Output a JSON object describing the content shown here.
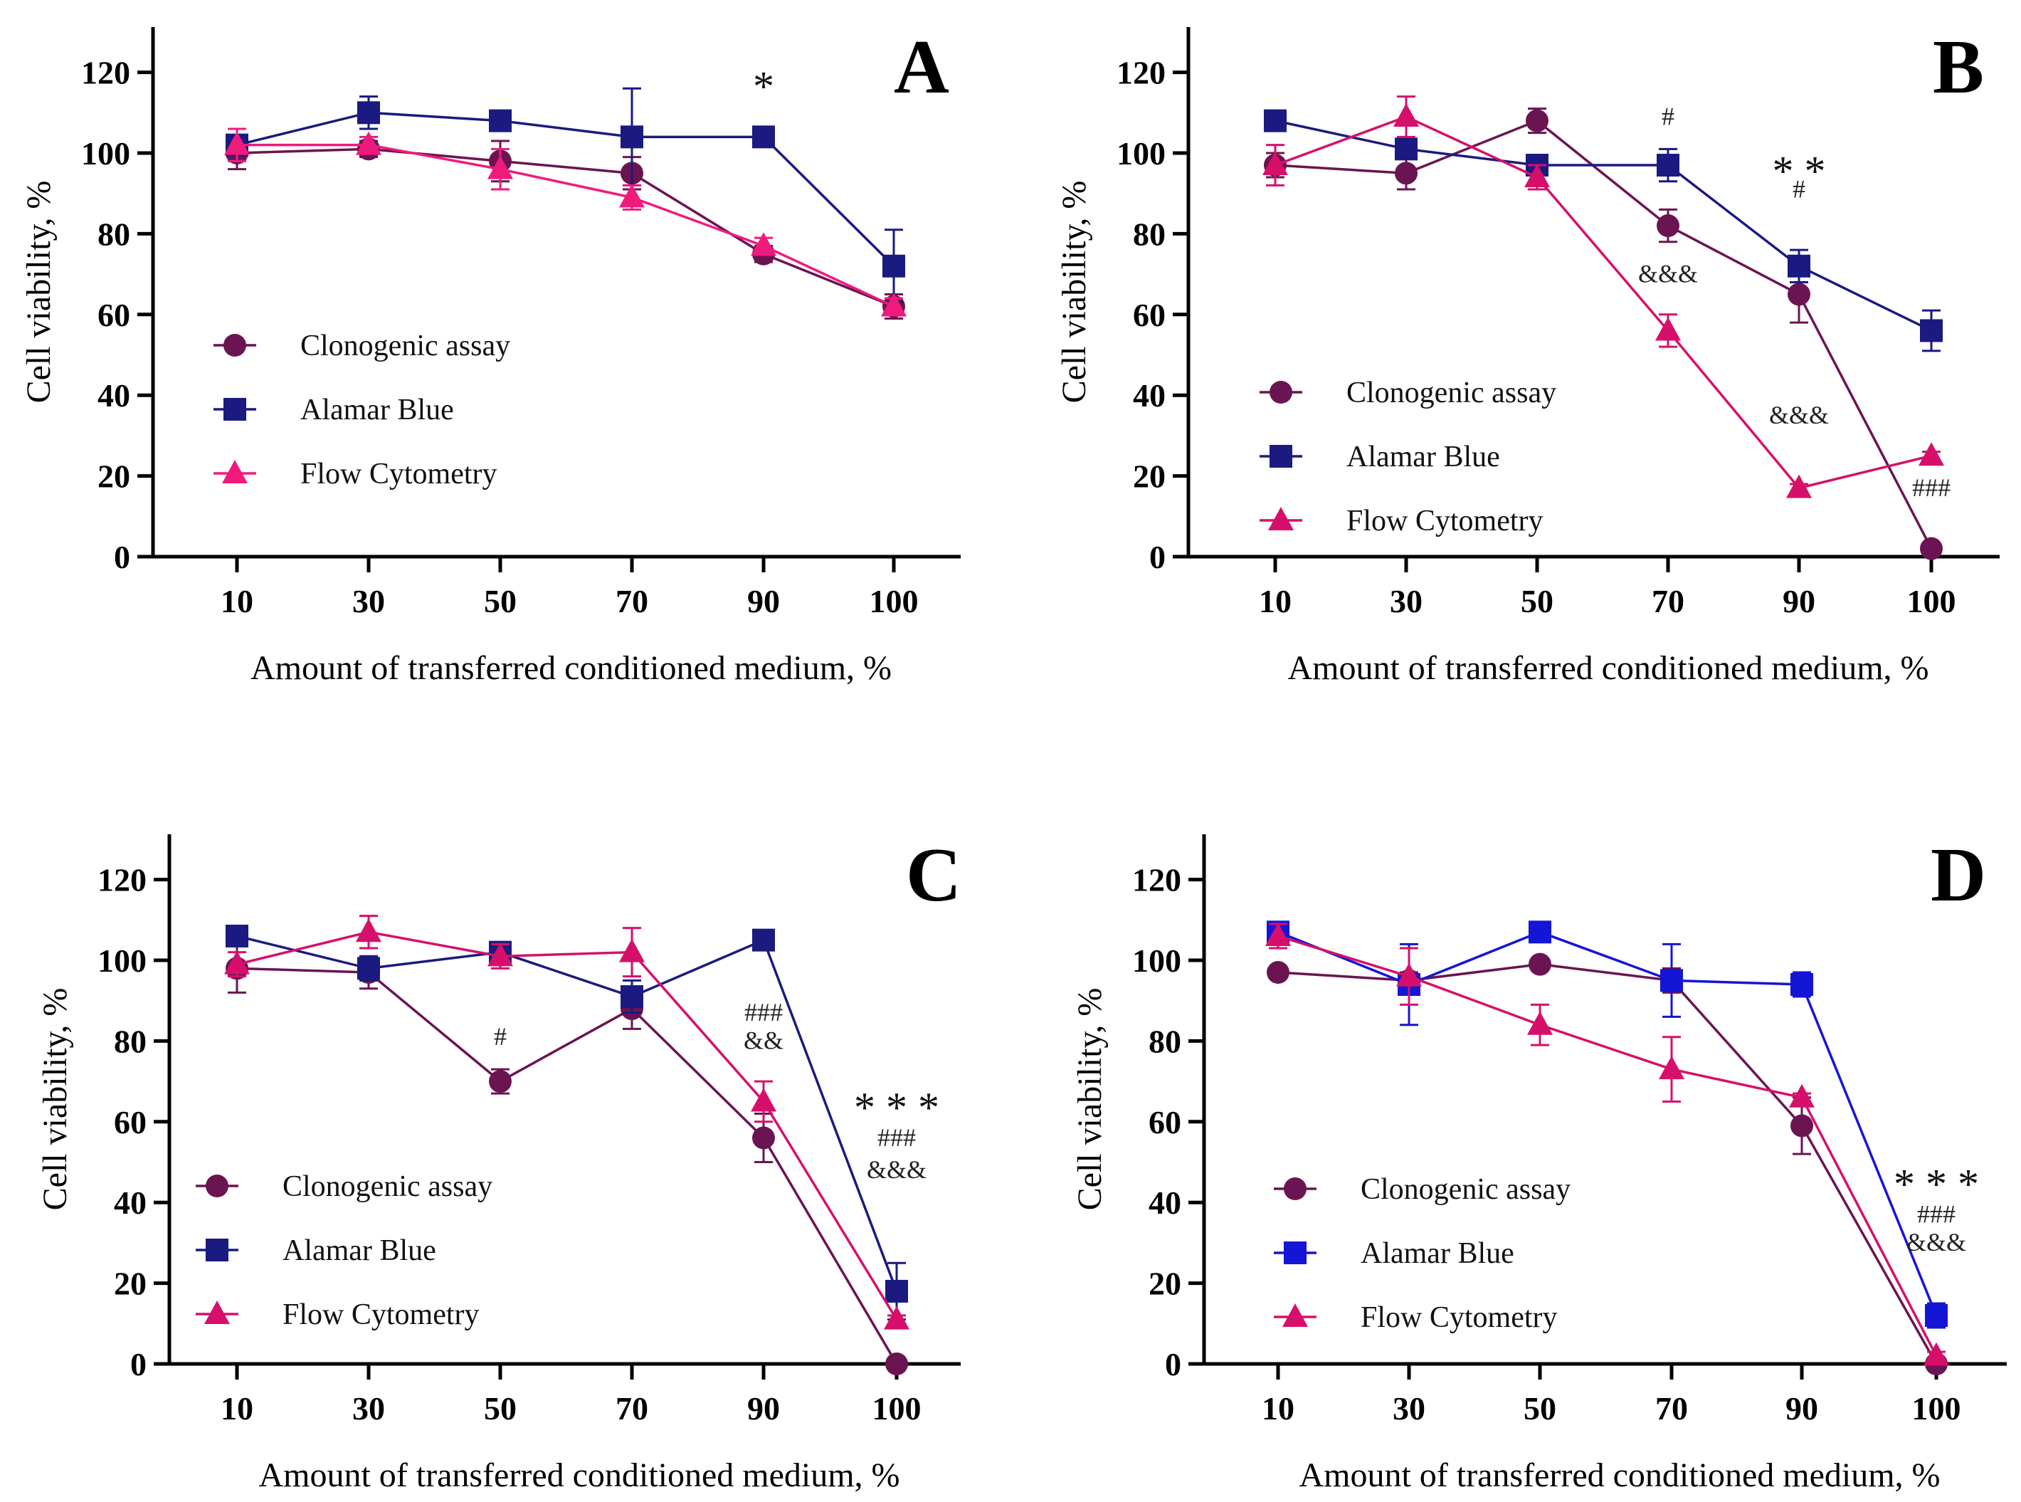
{
  "figure": {
    "x_axis_title": "Amount of transferred conditioned medium, %",
    "y_axis_title": "Cell viability, %"
  },
  "chart_data": [
    {
      "type": "line",
      "panel": "A",
      "xlabel": "Amount of transferred conditioned medium, %",
      "ylabel": "Cell viability, %",
      "categories": [
        "10",
        "30",
        "50",
        "70",
        "90",
        "100"
      ],
      "ylim": [
        0,
        130
      ],
      "yticks": [
        0,
        20,
        40,
        60,
        80,
        100,
        120
      ],
      "legend_position": "center-left",
      "series": [
        {
          "name": "Clonogenic assay",
          "marker": "circle",
          "color": "#6b1452",
          "values": [
            100,
            101,
            98,
            95,
            75,
            62
          ],
          "errors": [
            4,
            2,
            5,
            4,
            2,
            3
          ]
        },
        {
          "name": "Alamar Blue",
          "marker": "square",
          "color": "#1a1a80",
          "values": [
            102,
            110,
            108,
            104,
            104,
            72
          ],
          "errors": [
            2,
            4,
            2,
            12,
            2,
            9
          ]
        },
        {
          "name": "Flow Cytometry",
          "marker": "triangle",
          "color": "#f01a7d",
          "values": [
            102,
            102,
            96,
            89,
            77,
            62
          ],
          "errors": [
            4,
            2,
            5,
            3,
            2,
            2
          ]
        }
      ],
      "annotations": [
        {
          "text": "*",
          "x": "90",
          "y": 113,
          "size": "big"
        }
      ]
    },
    {
      "type": "line",
      "panel": "B",
      "xlabel": "Amount of transferred conditioned medium, %",
      "ylabel": "Cell viability, %",
      "categories": [
        "10",
        "30",
        "50",
        "70",
        "90",
        "100"
      ],
      "ylim": [
        0,
        130
      ],
      "yticks": [
        0,
        20,
        40,
        60,
        80,
        100,
        120
      ],
      "legend_position": "bottom-left",
      "series": [
        {
          "name": "Clonogenic assay",
          "marker": "circle",
          "color": "#6b1452",
          "values": [
            97,
            95,
            108,
            82,
            65,
            2
          ],
          "errors": [
            3,
            4,
            3,
            4,
            7,
            1
          ]
        },
        {
          "name": "Alamar Blue",
          "marker": "square",
          "color": "#1a1a80",
          "values": [
            108,
            101,
            97,
            97,
            72,
            56
          ],
          "errors": [
            2,
            2,
            2,
            4,
            4,
            5
          ]
        },
        {
          "name": "Flow Cytometry",
          "marker": "triangle",
          "color": "#d6106a",
          "values": [
            97,
            109,
            94,
            56,
            17,
            25
          ],
          "errors": [
            5,
            5,
            3,
            4,
            1,
            1
          ]
        }
      ],
      "annotations": [
        {
          "text": "#",
          "x": "70",
          "y": 107,
          "size": "small"
        },
        {
          "text": "* *",
          "x": "90",
          "y": 92,
          "size": "big"
        },
        {
          "text": "#",
          "x": "90",
          "y": 89,
          "size": "small"
        },
        {
          "text": "&&&",
          "x": "70",
          "y": 68,
          "size": "small"
        },
        {
          "text": "&&&",
          "x": "90",
          "y": 33,
          "size": "small"
        },
        {
          "text": "###",
          "x": "100",
          "y": 15,
          "size": "small"
        }
      ]
    },
    {
      "type": "line",
      "panel": "C",
      "xlabel": "Amount of transferred conditioned medium, %",
      "ylabel": "Cell viability, %",
      "categories": [
        "10",
        "30",
        "50",
        "70",
        "90",
        "100"
      ],
      "ylim": [
        0,
        130
      ],
      "yticks": [
        0,
        20,
        40,
        60,
        80,
        100,
        120
      ],
      "legend_position": "center-left",
      "series": [
        {
          "name": "Clonogenic assay",
          "marker": "circle",
          "color": "#6b1452",
          "values": [
            98,
            97,
            70,
            88,
            56,
            0
          ],
          "errors": [
            6,
            4,
            3,
            5,
            6,
            0
          ]
        },
        {
          "name": "Alamar Blue",
          "marker": "square",
          "color": "#1a1a80",
          "values": [
            106,
            98,
            102,
            91,
            105,
            18
          ],
          "errors": [
            2,
            3,
            2,
            4,
            1,
            7
          ]
        },
        {
          "name": "Flow Cytometry",
          "marker": "triangle",
          "color": "#d6106a",
          "values": [
            99,
            107,
            101,
            102,
            65,
            11
          ],
          "errors": [
            3,
            4,
            3,
            6,
            5,
            1
          ]
        }
      ],
      "annotations": [
        {
          "text": "#",
          "x": "50",
          "y": 79,
          "size": "small"
        },
        {
          "text": "###",
          "x": "90",
          "y": 85,
          "size": "small"
        },
        {
          "text": "&&",
          "x": "90",
          "y": 78,
          "size": "small"
        },
        {
          "text": "* * *",
          "x": "100",
          "y": 60,
          "size": "big"
        },
        {
          "text": "###",
          "x": "100",
          "y": 54,
          "size": "small"
        },
        {
          "text": "&&&",
          "x": "100",
          "y": 46,
          "size": "small"
        }
      ]
    },
    {
      "type": "line",
      "panel": "D",
      "xlabel": "Amount of transferred conditioned medium, %",
      "ylabel": "Cell viability, %",
      "categories": [
        "10",
        "30",
        "50",
        "70",
        "90",
        "100"
      ],
      "ylim": [
        0,
        130
      ],
      "yticks": [
        0,
        20,
        40,
        60,
        80,
        100,
        120
      ],
      "legend_position": "bottom-left",
      "series": [
        {
          "name": "Clonogenic assay",
          "marker": "circle",
          "color": "#6b1452",
          "values": [
            97,
            95,
            99,
            95,
            59,
            0
          ],
          "errors": [
            1,
            2,
            1,
            3,
            7,
            0
          ]
        },
        {
          "name": "Alamar Blue",
          "marker": "square",
          "color": "#1515d6",
          "values": [
            107,
            94,
            107,
            95,
            94,
            12
          ],
          "errors": [
            2,
            10,
            2,
            9,
            3,
            3
          ]
        },
        {
          "name": "Flow Cytometry",
          "marker": "triangle",
          "color": "#d6106a",
          "values": [
            106,
            96,
            84,
            73,
            66,
            2
          ],
          "errors": [
            3,
            7,
            5,
            8,
            1,
            1
          ]
        }
      ],
      "annotations": [
        {
          "text": "* * *",
          "x": "100",
          "y": 41,
          "size": "big"
        },
        {
          "text": "###",
          "x": "100",
          "y": 35,
          "size": "small"
        },
        {
          "text": "&&&",
          "x": "100",
          "y": 28,
          "size": "small"
        }
      ]
    }
  ]
}
